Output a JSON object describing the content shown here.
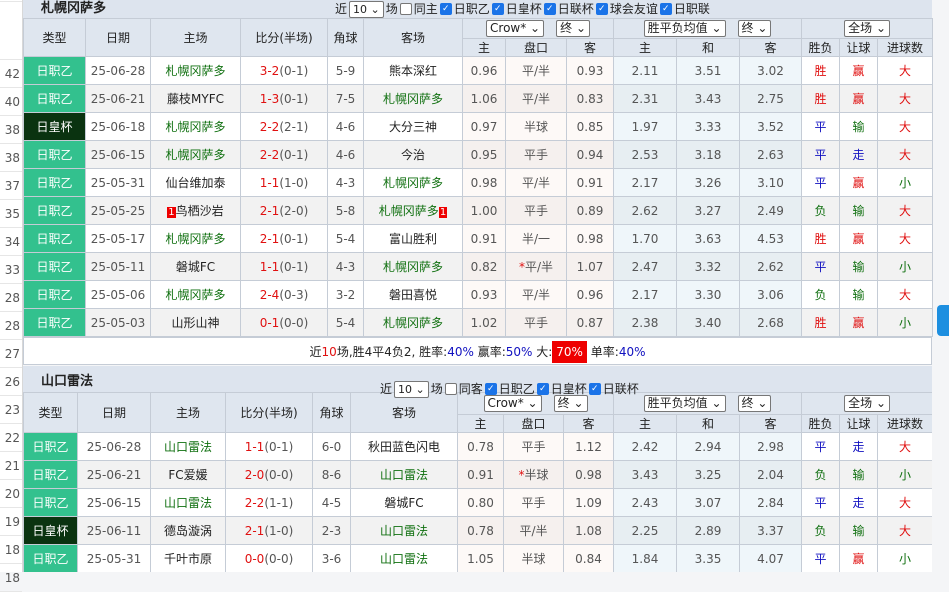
{
  "side_numbers": [
    "",
    "",
    "42",
    "40",
    "38",
    "38",
    "37",
    "35",
    "34",
    "33",
    "28",
    "28",
    "27",
    "26",
    "23",
    "22",
    "21",
    "20",
    "19",
    "18",
    "18"
  ],
  "colors": {
    "jzy": "#33c18e",
    "jhb": "#0a3310",
    "win": "#e01010",
    "draw": "#1010c0",
    "lose": "#107010"
  },
  "t1": {
    "team": "札幌冈萨多",
    "filter": {
      "near": "近",
      "count": "10",
      "unit": "场",
      "checks": [
        {
          "label": "同主",
          "on": false
        },
        {
          "label": "日职乙",
          "on": true
        },
        {
          "label": "日皇杯",
          "on": true
        },
        {
          "label": "日联杯",
          "on": true
        },
        {
          "label": "球会友谊",
          "on": true
        },
        {
          "label": "日职联",
          "on": true
        }
      ]
    },
    "headers": [
      "类型",
      "日期",
      "主场",
      "比分(半场)",
      "角球",
      "客场"
    ],
    "sel": [
      "Crow*",
      "终",
      "胜平负均值",
      "终",
      "全场"
    ],
    "sub": [
      "主",
      "盘口",
      "客",
      "主",
      "和",
      "客",
      "胜负",
      "让球",
      "进球数"
    ],
    "rows": [
      [
        "日职乙",
        "25-06-28",
        "札幌冈萨多",
        "3-2",
        "(0-1)",
        "5-9",
        "熊本深红",
        "0.96",
        "平/半",
        "0.93",
        "2.11",
        "3.51",
        "3.02",
        "胜",
        "赢",
        "大"
      ],
      [
        "日职乙",
        "25-06-21",
        "藤枝MYFC",
        "1-3",
        "(0-1)",
        "7-5",
        "札幌冈萨多",
        "1.06",
        "平/半",
        "0.83",
        "2.31",
        "3.43",
        "2.75",
        "胜",
        "赢",
        "大"
      ],
      [
        "日皇杯",
        "25-06-18",
        "札幌冈萨多",
        "2-2",
        "(2-1)",
        "4-6",
        "大分三神",
        "0.97",
        "半球",
        "0.85",
        "1.97",
        "3.33",
        "3.52",
        "平",
        "输",
        "大"
      ],
      [
        "日职乙",
        "25-06-15",
        "札幌冈萨多",
        "2-2",
        "(0-1)",
        "4-6",
        "今治",
        "0.95",
        "平手",
        "0.94",
        "2.53",
        "3.18",
        "2.63",
        "平",
        "走",
        "大"
      ],
      [
        "日职乙",
        "25-05-31",
        "仙台维加泰",
        "1-1",
        "(1-0)",
        "4-3",
        "札幌冈萨多",
        "0.98",
        "平/半",
        "0.91",
        "2.17",
        "3.26",
        "3.10",
        "平",
        "赢",
        "小"
      ],
      [
        "日职乙",
        "25-05-25",
        "鸟栖沙岩",
        "2-1",
        "(2-0)",
        "5-8",
        "札幌冈萨多",
        "1.00",
        "平手",
        "0.89",
        "2.62",
        "3.27",
        "2.49",
        "负",
        "输",
        "大"
      ],
      [
        "日职乙",
        "25-05-17",
        "札幌冈萨多",
        "2-1",
        "(0-1)",
        "5-4",
        "富山胜利",
        "0.91",
        "半/一",
        "0.98",
        "1.70",
        "3.63",
        "4.53",
        "胜",
        "赢",
        "大"
      ],
      [
        "日职乙",
        "25-05-11",
        "磐城FC",
        "1-1",
        "(0-1)",
        "4-3",
        "札幌冈萨多",
        "0.82",
        "*平/半",
        "1.07",
        "2.47",
        "3.32",
        "2.62",
        "平",
        "输",
        "小"
      ],
      [
        "日职乙",
        "25-05-06",
        "札幌冈萨多",
        "2-4",
        "(0-3)",
        "3-2",
        "磐田喜悦",
        "0.93",
        "平/半",
        "0.96",
        "2.17",
        "3.30",
        "3.06",
        "负",
        "输",
        "大"
      ],
      [
        "日职乙",
        "25-05-03",
        "山形山神",
        "0-1",
        "(0-0)",
        "5-4",
        "札幌冈萨多",
        "1.02",
        "平手",
        "0.87",
        "2.38",
        "3.40",
        "2.68",
        "胜",
        "赢",
        "小"
      ]
    ],
    "red_card_badge": "1",
    "summary": {
      "p1": "近",
      "n": "10",
      "p2": "场,胜4平4负2, 胜率:",
      "win": "40%",
      "p3": " 赢率:",
      "ying": "50%",
      "p4": " 大:",
      "da": "70%",
      "p5": " 单率:",
      "dan": "40%"
    }
  },
  "t2": {
    "team": "山口雷法",
    "filter": {
      "near": "近",
      "count": "10",
      "unit": "场",
      "checks": [
        {
          "label": "同客",
          "on": false
        },
        {
          "label": "日职乙",
          "on": true
        },
        {
          "label": "日皇杯",
          "on": true
        },
        {
          "label": "日联杯",
          "on": true
        }
      ]
    },
    "headers": [
      "类型",
      "日期",
      "主场",
      "比分(半场)",
      "角球",
      "客场"
    ],
    "sel": [
      "Crow*",
      "终",
      "胜平负均值",
      "终",
      "全场"
    ],
    "sub": [
      "主",
      "盘口",
      "客",
      "主",
      "和",
      "客",
      "胜负",
      "让球",
      "进球数"
    ],
    "rows": [
      [
        "日职乙",
        "25-06-28",
        "山口雷法",
        "1-1",
        "(0-1)",
        "6-0",
        "秋田蓝色闪电",
        "0.78",
        "平手",
        "1.12",
        "2.42",
        "2.94",
        "2.98",
        "平",
        "走",
        "大"
      ],
      [
        "日职乙",
        "25-06-21",
        "FC爱媛",
        "2-0",
        "(0-0)",
        "8-6",
        "山口雷法",
        "0.91",
        "*半球",
        "0.98",
        "3.43",
        "3.25",
        "2.04",
        "负",
        "输",
        "小"
      ],
      [
        "日职乙",
        "25-06-15",
        "山口雷法",
        "2-2",
        "(1-1)",
        "4-5",
        "磐城FC",
        "0.80",
        "平手",
        "1.09",
        "2.43",
        "3.07",
        "2.84",
        "平",
        "走",
        "大"
      ],
      [
        "日皇杯",
        "25-06-11",
        "德岛漩涡",
        "2-1",
        "(1-0)",
        "2-3",
        "山口雷法",
        "0.78",
        "平/半",
        "1.08",
        "2.25",
        "2.89",
        "3.37",
        "负",
        "输",
        "大"
      ],
      [
        "日职乙",
        "25-05-31",
        "千叶市原",
        "0-0",
        "(0-0)",
        "3-6",
        "山口雷法",
        "1.05",
        "半球",
        "0.84",
        "1.84",
        "3.35",
        "4.07",
        "平",
        "赢",
        "小"
      ]
    ]
  }
}
